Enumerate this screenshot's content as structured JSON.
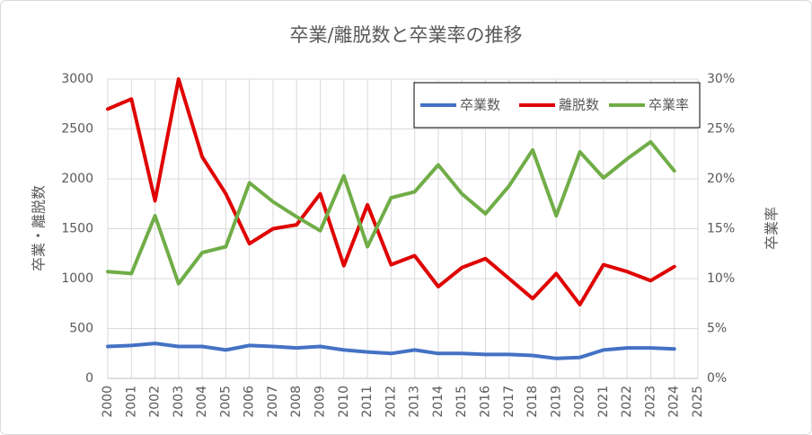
{
  "chart_data": {
    "type": "line",
    "title": "卒業/離脱数と卒業率の推移",
    "y_label": "卒業・離脱数",
    "y2_label": "卒業率",
    "categories": [
      "2000",
      "2001",
      "2002",
      "2003",
      "2004",
      "2005",
      "2006",
      "2007",
      "2008",
      "2009",
      "2010",
      "2011",
      "2012",
      "2013",
      "2014",
      "2015",
      "2016",
      "2017",
      "2018",
      "2019",
      "2020",
      "2021",
      "2022",
      "2023",
      "2024",
      "2025"
    ],
    "series": [
      {
        "name": "卒業数",
        "color": "#4472c4",
        "values": [
          320,
          330,
          350,
          320,
          320,
          285,
          330,
          320,
          305,
          320,
          285,
          265,
          250,
          285,
          250,
          250,
          240,
          240,
          230,
          200,
          210,
          285,
          305,
          305,
          295,
          null
        ]
      },
      {
        "name": "離脱数",
        "color": "#e00000",
        "values": [
          2700,
          2800,
          1780,
          3000,
          2220,
          1850,
          1350,
          1500,
          1540,
          1850,
          1130,
          1740,
          1140,
          1230,
          920,
          1110,
          1200,
          1000,
          800,
          1050,
          740,
          1140,
          1070,
          980,
          1120,
          null
        ]
      },
      {
        "name": "卒業率",
        "color": "#70ad47",
        "axis": "y2",
        "values": [
          10.7,
          10.5,
          16.3,
          9.5,
          12.6,
          13.2,
          19.6,
          17.7,
          16.2,
          14.8,
          20.3,
          13.2,
          18.1,
          18.7,
          21.4,
          18.5,
          16.5,
          19.3,
          22.9,
          16.3,
          22.7,
          20.1,
          22.0,
          23.7,
          20.8,
          null
        ]
      }
    ],
    "ylim": [
      0,
      3000
    ],
    "yticks": [
      0,
      500,
      1000,
      1500,
      2000,
      2500,
      3000
    ],
    "y2lim": [
      0,
      30
    ],
    "y2ticks": [
      {
        "value": 0,
        "label": "0%"
      },
      {
        "value": 5,
        "label": "5%"
      },
      {
        "value": 10,
        "label": "10%"
      },
      {
        "value": 15,
        "label": "15%"
      },
      {
        "value": 20,
        "label": "20%"
      },
      {
        "value": 25,
        "label": "25%"
      },
      {
        "value": 30,
        "label": "30%"
      }
    ],
    "grid": true,
    "legend": "upper right"
  }
}
